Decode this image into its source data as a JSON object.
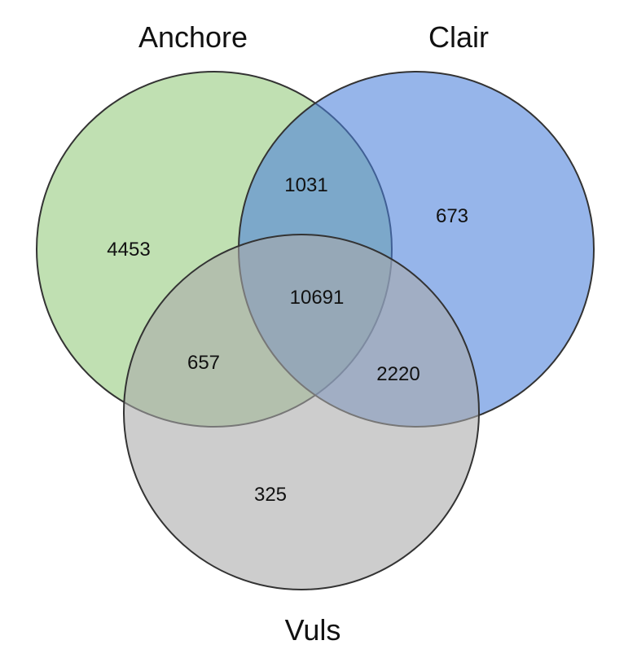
{
  "chart_data": {
    "type": "venn",
    "sets": [
      {
        "id": "A",
        "name": "Anchore",
        "color": "#93c97a"
      },
      {
        "id": "C",
        "name": "Clair",
        "color": "#4a7fdb"
      },
      {
        "id": "V",
        "name": "Vuls",
        "color": "#a8a8a8"
      }
    ],
    "regions": [
      {
        "id": "A_only",
        "sets": [
          "Anchore"
        ],
        "value": "4453"
      },
      {
        "id": "C_only",
        "sets": [
          "Clair"
        ],
        "value": "673"
      },
      {
        "id": "V_only",
        "sets": [
          "Vuls"
        ],
        "value": "325"
      },
      {
        "id": "AC_only",
        "sets": [
          "Anchore",
          "Clair"
        ],
        "value": "1031"
      },
      {
        "id": "AV_only",
        "sets": [
          "Anchore",
          "Vuls"
        ],
        "value": "657"
      },
      {
        "id": "CV_only",
        "sets": [
          "Clair",
          "Vuls"
        ],
        "value": "2220"
      },
      {
        "id": "ACV",
        "sets": [
          "Anchore",
          "Clair",
          "Vuls"
        ],
        "value": "10691"
      }
    ]
  }
}
